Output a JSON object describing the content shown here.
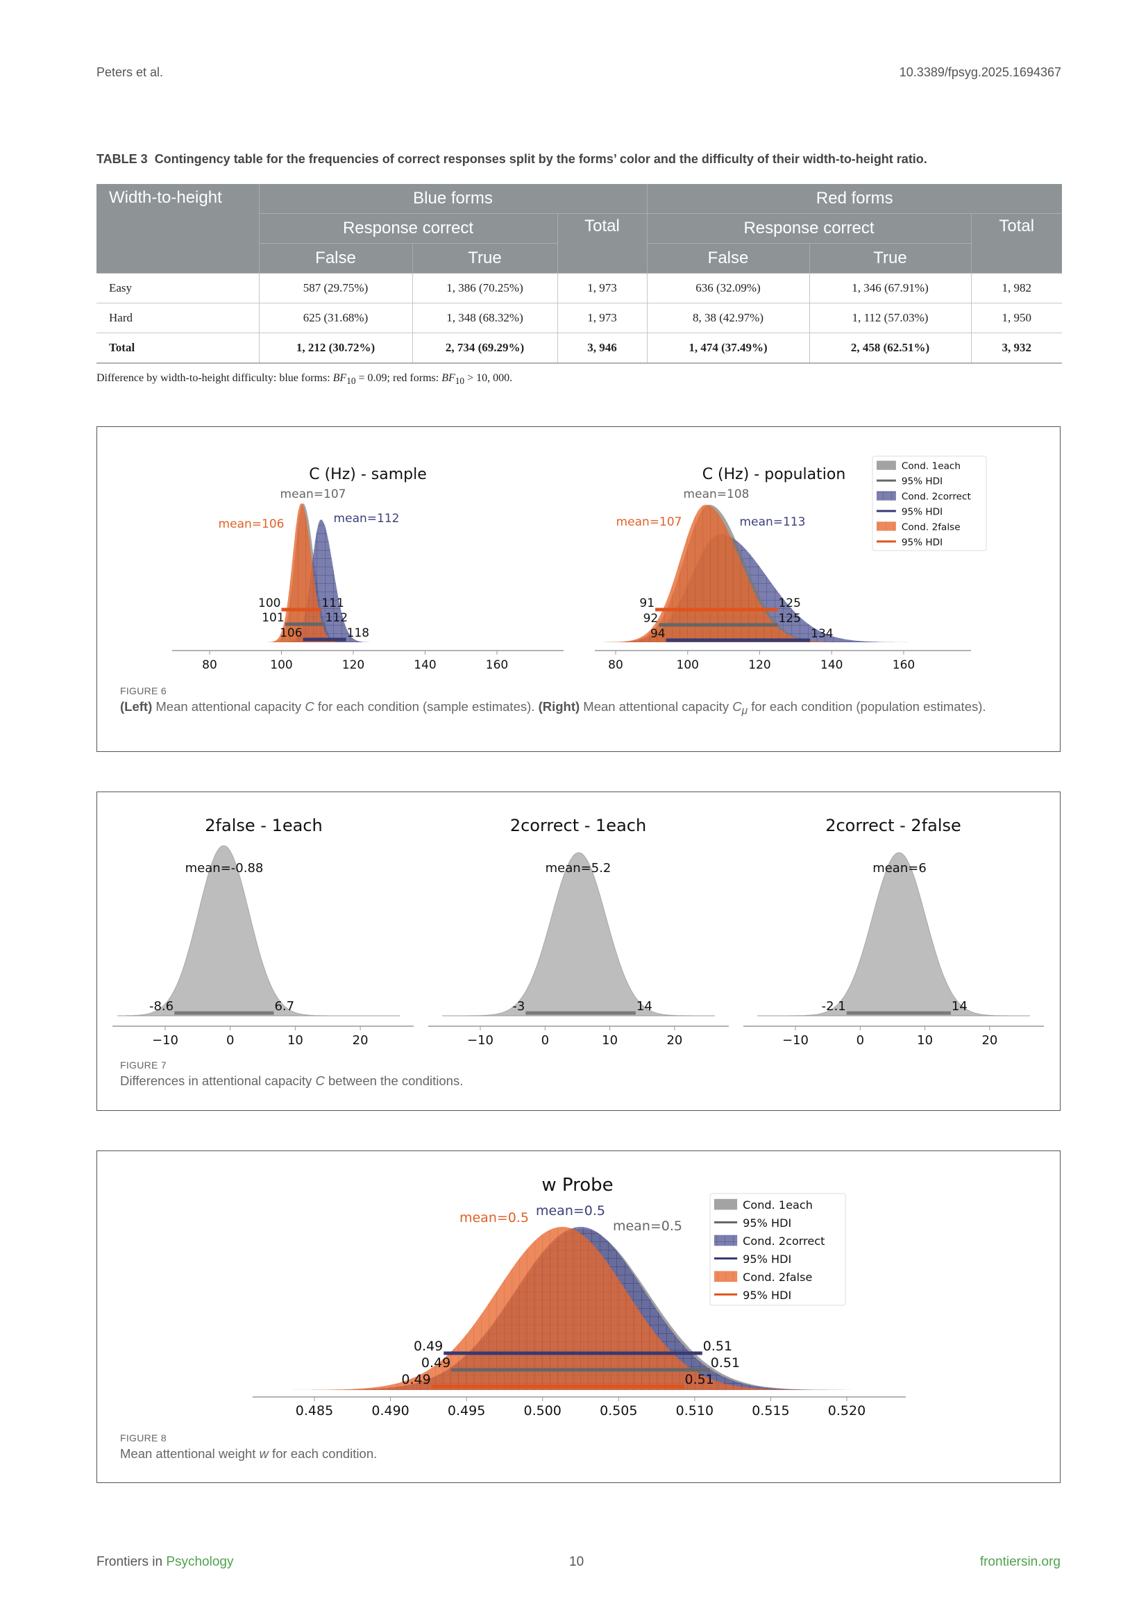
{
  "header": {
    "author": "Peters et al.",
    "doi": "10.3389/fpsyg.2025.1694367"
  },
  "table": {
    "label": "TABLE 3",
    "caption": "Contingency table for the frequencies of correct responses split by the forms’ color and the difficulty of their width-to-height ratio.",
    "col_header": "Width-to-height",
    "group_blue": "Blue forms",
    "group_red": "Red forms",
    "response_correct": "Response correct",
    "total": "Total",
    "false": "False",
    "true": "True",
    "rows": [
      {
        "label": "Easy",
        "cells": [
          "587 (29.75%)",
          "1, 386 (70.25%)",
          "1, 973",
          "636 (32.09%)",
          "1, 346 (67.91%)",
          "1, 982"
        ]
      },
      {
        "label": "Hard",
        "cells": [
          "625 (31.68%)",
          "1, 348 (68.32%)",
          "1, 973",
          "8, 38 (42.97%)",
          "1, 112 (57.03%)",
          "1, 950"
        ]
      },
      {
        "label": "Total",
        "cells": [
          "1, 212 (30.72%)",
          "2, 734 (69.29%)",
          "3, 946",
          "1, 474 (37.49%)",
          "2, 458 (62.51%)",
          "3, 932"
        ]
      }
    ],
    "note": {
      "p1": "Difference by width-to-height difficulty: blue forms: ",
      "bf": "BF",
      "sub": "10",
      "p2": " = 0.09; red forms: ",
      "p3": " > 10, 000."
    }
  },
  "figure6": {
    "label": "FIGURE 6",
    "left_bold": "(Left)",
    "t1": " Mean attentional capacity ",
    "c": "C",
    "t2": " for each condition (sample estimates). ",
    "right_bold": "(Right)",
    "t3": " Mean attentional capacity ",
    "mu": "μ",
    "t4": " for each condition (population estimates)."
  },
  "figure7": {
    "label": "FIGURE 7",
    "t1": "Differences in attentional capacity ",
    "c": "C",
    "t2": " between the conditions."
  },
  "figure8": {
    "label": "FIGURE 8",
    "t1": "Mean attentional weight ",
    "w": "w",
    "t2": " for each condition."
  },
  "colors": {
    "gray": "#7f7f7f",
    "blue": "#4b4f8e",
    "orange": "#e8682e",
    "gray_hdi": "#666666",
    "blue_hdi": "#373a73",
    "orange_hdi": "#e0531b"
  },
  "chart_data": [
    {
      "id": "fig6-left",
      "type": "density",
      "title": "C (Hz) - sample",
      "xticks": [
        "80",
        "100",
        "120",
        "140",
        "160"
      ],
      "xtick_values": [
        80,
        100,
        120,
        140,
        160
      ],
      "xlim": [
        70,
        180
      ],
      "series": [
        {
          "name": "Cond. 1each",
          "color": "gray",
          "mode": 106,
          "sd_left": 2.3,
          "sd_right": 3.0,
          "mean_label": "mean=107",
          "hdi": [
            101,
            112
          ],
          "hdi_labels": [
            "101",
            "112"
          ]
        },
        {
          "name": "Cond. 2correct",
          "color": "blue",
          "mode": 111,
          "sd_left": 2.6,
          "sd_right": 3.4,
          "mean_label": "mean=112",
          "hdi": [
            106,
            118
          ],
          "hdi_labels": [
            "106",
            "118"
          ]
        },
        {
          "name": "Cond. 2false",
          "color": "orange",
          "mode": 105.5,
          "sd_left": 2.4,
          "sd_right": 2.9,
          "mean_label": "mean=106",
          "hdi": [
            100,
            111
          ],
          "hdi_labels": [
            "100",
            "111"
          ]
        }
      ]
    },
    {
      "id": "fig6-right",
      "type": "density",
      "title": "C (Hz) - population",
      "xticks": [
        "80",
        "100",
        "120",
        "140",
        "160"
      ],
      "xtick_values": [
        80,
        100,
        120,
        140,
        160
      ],
      "xlim": [
        70,
        180
      ],
      "legend": [
        "Cond. 1each",
        "95% HDI",
        "Cond. 2correct",
        "95% HDI",
        "Cond. 2false",
        "95% HDI"
      ],
      "legend_position": "top-right",
      "series": [
        {
          "name": "Cond. 1each",
          "color": "gray",
          "mode": 106,
          "sd_left": 7,
          "sd_right": 9.5,
          "mean_label": "mean=108",
          "hdi": [
            92,
            125
          ],
          "hdi_labels": [
            "92",
            "125"
          ]
        },
        {
          "name": "Cond. 2correct",
          "color": "blue",
          "mode": 109,
          "sd_left": 8,
          "sd_right": 13,
          "mean_label": "mean=113",
          "hdi": [
            94,
            134
          ],
          "hdi_labels": [
            "94",
            "134"
          ]
        },
        {
          "name": "Cond. 2false",
          "color": "orange",
          "mode": 105,
          "sd_left": 7,
          "sd_right": 9.5,
          "mean_label": "mean=107",
          "hdi": [
            91,
            125
          ],
          "hdi_labels": [
            "91",
            "125"
          ]
        }
      ]
    },
    {
      "id": "fig7-a",
      "type": "density",
      "title": "2false - 1each",
      "xticks": [
        "−10",
        "0",
        "10",
        "20"
      ],
      "xtick_values": [
        -10,
        0,
        10,
        20
      ],
      "xlim": [
        -18,
        28
      ],
      "series": [
        {
          "name": "2false - 1each",
          "color": "gray",
          "mode": -1,
          "sd_left": 3.9,
          "sd_right": 3.9,
          "mean_label": "mean=-0.88",
          "hdi": [
            -8.6,
            6.7
          ],
          "hdi_labels": [
            "-8.6",
            "6.7"
          ]
        }
      ]
    },
    {
      "id": "fig7-b",
      "type": "density",
      "title": "2correct - 1each",
      "xticks": [
        "−10",
        "0",
        "10",
        "20"
      ],
      "xtick_values": [
        -10,
        0,
        10,
        20
      ],
      "xlim": [
        -18,
        28
      ],
      "series": [
        {
          "name": "2correct - 1each",
          "color": "gray",
          "mode": 5.2,
          "sd_left": 4.2,
          "sd_right": 4.2,
          "mean_label": "mean=5.2",
          "hdi": [
            -3,
            14
          ],
          "hdi_labels": [
            "-3",
            "14"
          ]
        }
      ]
    },
    {
      "id": "fig7-c",
      "type": "density",
      "title": "2correct - 2false",
      "xticks": [
        "−10",
        "0",
        "10",
        "20"
      ],
      "xtick_values": [
        -10,
        0,
        10,
        20
      ],
      "xlim": [
        -18,
        28
      ],
      "series": [
        {
          "name": "2correct - 2false",
          "color": "gray",
          "mode": 6,
          "sd_left": 4.1,
          "sd_right": 4.1,
          "mean_label": "mean=6",
          "hdi": [
            -2.1,
            14
          ],
          "hdi_labels": [
            "-2.1",
            "14"
          ]
        }
      ]
    },
    {
      "id": "fig8",
      "type": "density",
      "title": "w Probe",
      "xticks": [
        "0.485",
        "0.490",
        "0.495",
        "0.500",
        "0.505",
        "0.510",
        "0.515",
        "0.520"
      ],
      "xtick_values": [
        0.485,
        0.49,
        0.495,
        0.5,
        0.505,
        0.51,
        0.515,
        0.52
      ],
      "xlim": [
        0.481,
        0.525
      ],
      "legend": [
        "Cond. 1each",
        "95% HDI",
        "Cond. 2correct",
        "95% HDI",
        "Cond. 2false",
        "95% HDI"
      ],
      "legend_position": "top-right",
      "series": [
        {
          "name": "Cond. 1each",
          "color": "gray",
          "mode": 0.5026,
          "sd_left": 0.0043,
          "sd_right": 0.0043,
          "mean_label": "mean=0.5",
          "hdi": [
            0.494,
            0.511
          ],
          "hdi_labels": [
            "0.49",
            "0.51"
          ]
        },
        {
          "name": "Cond. 2correct",
          "color": "blue",
          "mode": 0.5025,
          "sd_left": 0.0043,
          "sd_right": 0.0042,
          "mean_label": "mean=0.5",
          "hdi": [
            0.4935,
            0.5105
          ],
          "hdi_labels": [
            "0.49",
            "0.51"
          ]
        },
        {
          "name": "Cond. 2false",
          "color": "orange",
          "mode": 0.5013,
          "sd_left": 0.0043,
          "sd_right": 0.0042,
          "mean_label": "mean=0.5",
          "hdi": [
            0.4927,
            0.5093
          ],
          "hdi_labels": [
            "0.49",
            "0.51"
          ]
        }
      ]
    }
  ],
  "footer": {
    "prefix": "Frontiers in ",
    "journal": "Psychology",
    "page": "10",
    "site": "frontiersin.org"
  }
}
